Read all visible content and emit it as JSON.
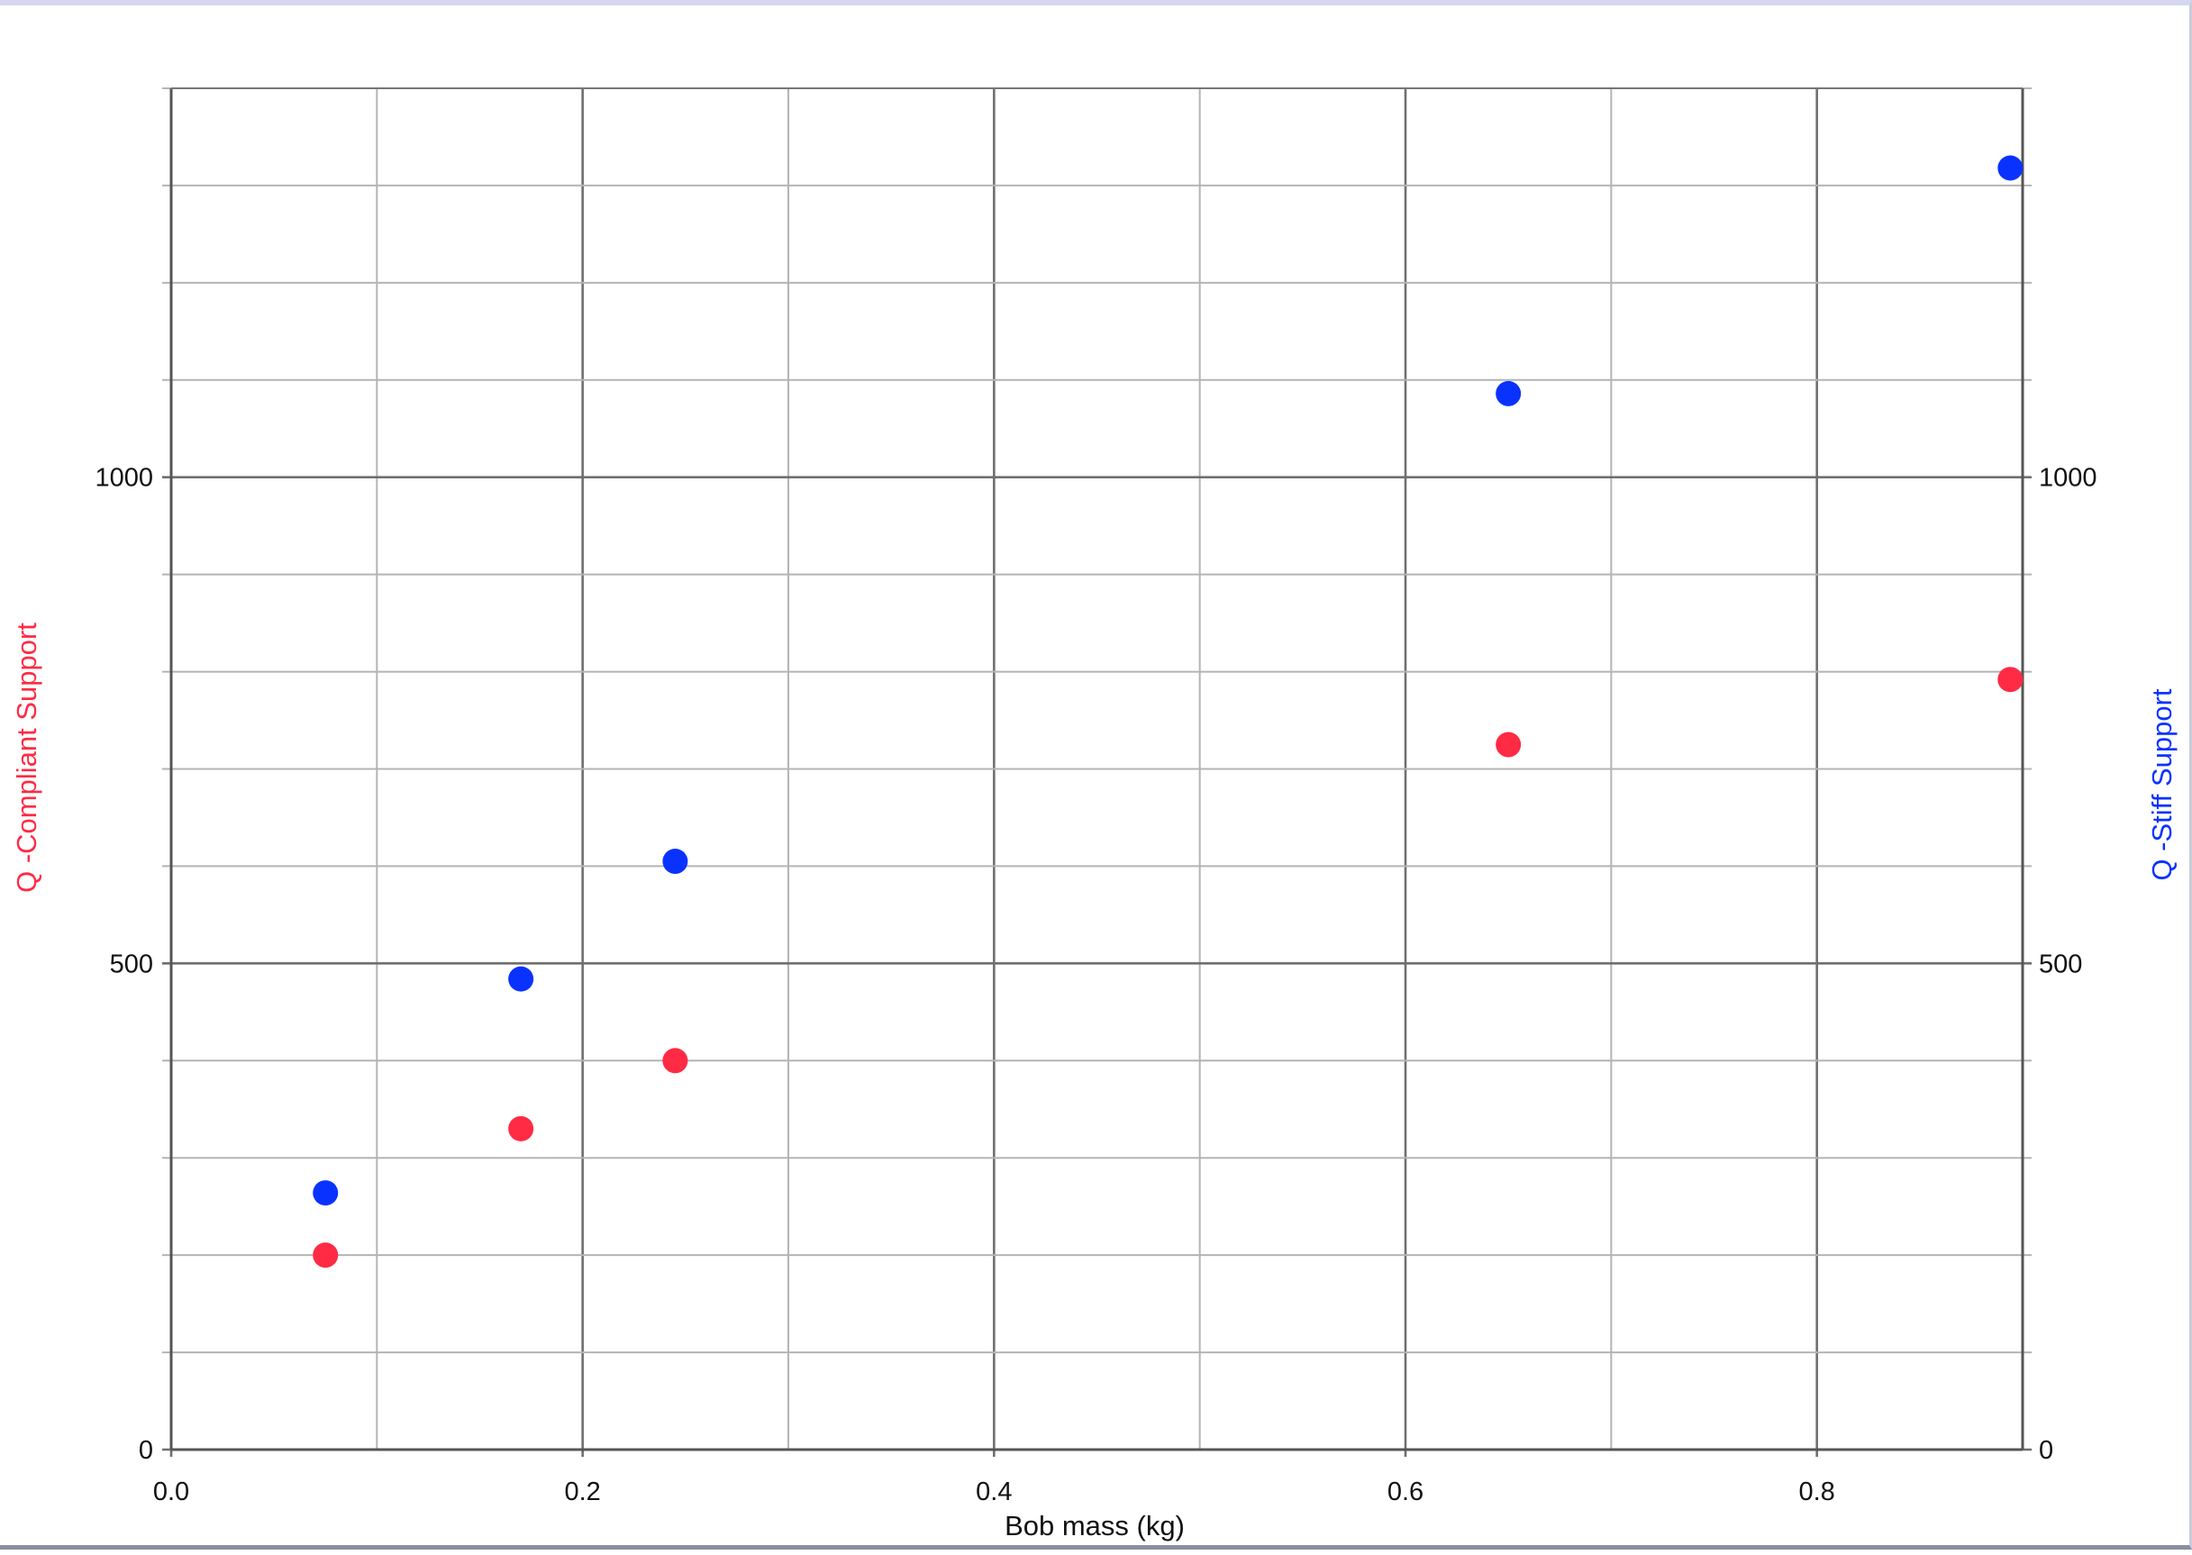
{
  "chart_data": {
    "type": "scatter",
    "title": "",
    "xlabel": "Bob mass (kg)",
    "ylabel_left": "Q -Compliant Support",
    "ylabel_right": "Q -Stiff Support",
    "xlim": [
      0.0,
      0.9
    ],
    "ylim": [
      0,
      1400
    ],
    "x_ticks": [
      {
        "value": 0.0,
        "label": "0.0"
      },
      {
        "value": 0.2,
        "label": "0.2"
      },
      {
        "value": 0.4,
        "label": "0.4"
      },
      {
        "value": 0.6,
        "label": "0.6"
      },
      {
        "value": 0.8,
        "label": "0.8"
      }
    ],
    "x_minor_step": 0.1,
    "y_ticks": [
      {
        "value": 0,
        "label": "0"
      },
      {
        "value": 500,
        "label": "500"
      },
      {
        "value": 1000,
        "label": "1000"
      }
    ],
    "y_minor_step": 100,
    "grid": true,
    "series": [
      {
        "name": "Q -Compliant Support",
        "axis": "left",
        "color": "#ff2a44",
        "x": [
          0.075,
          0.17,
          0.245,
          0.65,
          0.894
        ],
        "y": [
          200,
          330,
          400,
          725,
          792
        ]
      },
      {
        "name": "Q -Stiff Support",
        "axis": "right",
        "color": "#0a32ff",
        "x": [
          0.075,
          0.17,
          0.245,
          0.65,
          0.894
        ],
        "y": [
          264,
          484,
          605,
          1086,
          1318
        ]
      }
    ]
  }
}
